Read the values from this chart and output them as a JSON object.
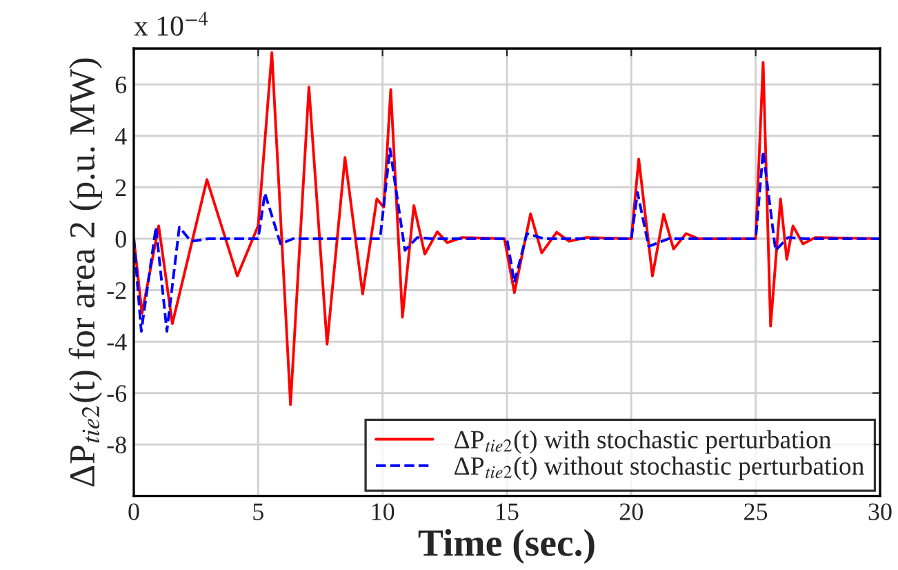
{
  "chart_data": {
    "type": "line",
    "xlabel": "Time (sec.)",
    "ylabel": "ΔP$_{tie2}$(t) for area 2 (p.u. MW)",
    "annotations": [
      "x 10$^{−4}$"
    ],
    "xlim": [
      0,
      30
    ],
    "xticks": [
      0,
      5,
      10,
      15,
      20,
      25,
      30
    ],
    "ylim": [
      -10,
      7.4
    ],
    "yticks": [
      -8,
      -6,
      -4,
      -2,
      0,
      2,
      4,
      6
    ],
    "grid": true,
    "legend": "bottom right",
    "line_style": "solid",
    "marker": "none",
    "series": [
      {
        "name": "ΔP$_{tie2}$(t) with stochastic perturbation",
        "color": "#ff0000",
        "x": [
          0,
          0.33,
          1.0,
          1.55,
          2.94,
          4.16,
          5.0,
          5.55,
          6.3,
          7.04,
          7.77,
          8.49,
          9.2,
          9.77,
          10.05,
          10.33,
          10.8,
          11.26,
          11.7,
          12.2,
          12.6,
          13.2,
          14.9,
          15.3,
          15.95,
          16.4,
          17.0,
          17.5,
          18.2,
          20.0,
          20.3,
          20.85,
          21.3,
          21.7,
          22.2,
          22.7,
          25.0,
          25.3,
          25.6,
          26.0,
          26.25,
          26.5,
          26.9,
          27.4,
          30
        ],
        "values": [
          0,
          -2.9,
          0.5,
          -3.3,
          2.3,
          -1.45,
          0.5,
          7.24,
          -6.45,
          5.9,
          -4.1,
          3.16,
          -2.15,
          1.55,
          1.23,
          5.8,
          -3.05,
          1.29,
          -0.6,
          0.27,
          -0.15,
          0.05,
          0,
          -2.1,
          0.97,
          -0.55,
          0.25,
          -0.1,
          0.05,
          0,
          3.1,
          -1.45,
          0.95,
          -0.4,
          0.2,
          0,
          0,
          6.86,
          -3.4,
          1.55,
          -0.8,
          0.5,
          -0.2,
          0.05,
          0
        ]
      },
      {
        "name": "ΔP$_{tie2}$(t) without stochastic perturbation",
        "color": "#0000ff",
        "line_style": "dashed",
        "x": [
          0,
          0.3,
          0.89,
          1.33,
          1.83,
          2.3,
          3.0,
          5.0,
          5.27,
          5.9,
          6.4,
          9.9,
          10.3,
          10.9,
          11.4,
          12.0,
          15.0,
          15.3,
          15.8,
          16.5,
          20.0,
          20.25,
          20.7,
          21.5,
          25.0,
          25.3,
          25.8,
          26.3,
          27.0,
          30
        ],
        "values": [
          0,
          -3.6,
          0.45,
          -3.6,
          0.45,
          -0.1,
          0,
          0,
          1.77,
          -0.2,
          0,
          0,
          3.5,
          -0.45,
          0.05,
          0,
          0,
          -1.7,
          0.2,
          0,
          0,
          1.8,
          -0.3,
          0,
          0,
          3.4,
          -0.45,
          0.05,
          0,
          0
        ]
      }
    ]
  }
}
